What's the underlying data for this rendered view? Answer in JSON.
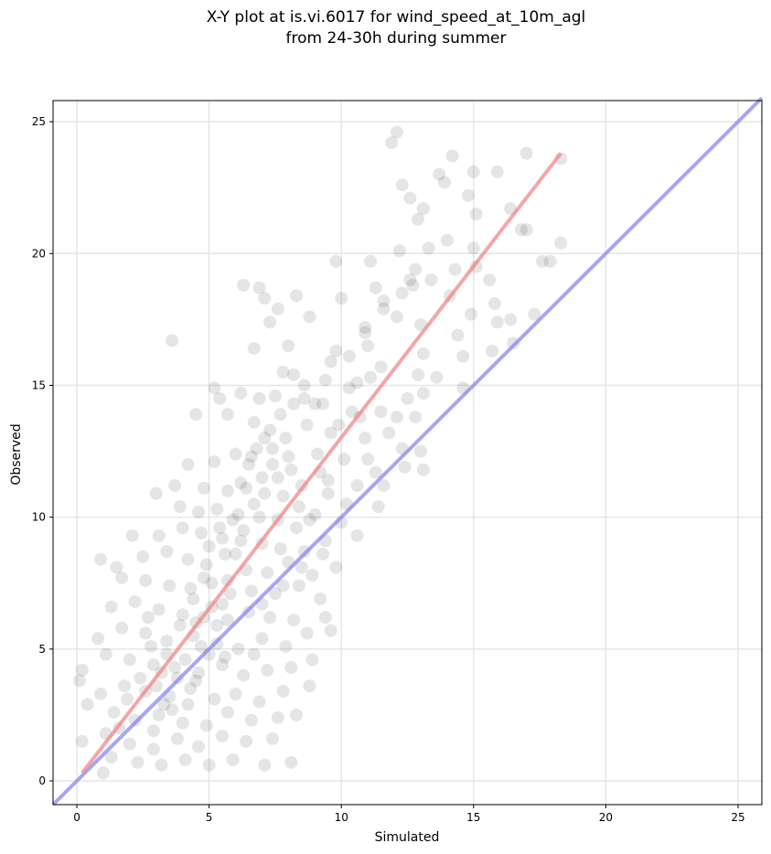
{
  "chart_data": {
    "type": "scatter",
    "title_lines": [
      "X-Y plot at is.vi.6017 for wind_speed_at_10m_agl",
      "from 24-30h during summer"
    ],
    "xlabel": "Simulated",
    "ylabel": "Observed",
    "xlim": [
      -0.9,
      25.9
    ],
    "ylim": [
      -0.9,
      25.8
    ],
    "xticks": [
      0,
      5,
      10,
      15,
      20,
      25
    ],
    "yticks": [
      0,
      5,
      10,
      15,
      20,
      25
    ],
    "grid": true,
    "point_color": "#000000",
    "point_alpha": 0.1,
    "points": [
      [
        18.3,
        23.6
      ],
      [
        12.1,
        24.6
      ],
      [
        11.9,
        24.2
      ],
      [
        17.0,
        23.8
      ],
      [
        14.2,
        23.7
      ],
      [
        13.7,
        23.0
      ],
      [
        15.0,
        23.1
      ],
      [
        15.9,
        23.1
      ],
      [
        13.9,
        22.7
      ],
      [
        12.3,
        22.6
      ],
      [
        12.6,
        22.1
      ],
      [
        14.8,
        22.2
      ],
      [
        12.9,
        21.3
      ],
      [
        13.1,
        21.7
      ],
      [
        15.1,
        21.5
      ],
      [
        16.4,
        21.7
      ],
      [
        16.8,
        20.9
      ],
      [
        17.0,
        20.9
      ],
      [
        18.3,
        20.4
      ],
      [
        12.2,
        20.1
      ],
      [
        13.3,
        20.2
      ],
      [
        14.0,
        20.5
      ],
      [
        15.0,
        20.2
      ],
      [
        11.1,
        19.7
      ],
      [
        9.8,
        19.7
      ],
      [
        12.8,
        19.4
      ],
      [
        14.3,
        19.4
      ],
      [
        15.1,
        19.5
      ],
      [
        17.6,
        19.7
      ],
      [
        17.9,
        19.7
      ],
      [
        11.3,
        18.7
      ],
      [
        12.6,
        19.0
      ],
      [
        13.4,
        19.0
      ],
      [
        15.6,
        19.0
      ],
      [
        6.3,
        18.8
      ],
      [
        6.9,
        18.7
      ],
      [
        8.3,
        18.4
      ],
      [
        10.0,
        18.3
      ],
      [
        11.6,
        18.2
      ],
      [
        14.1,
        18.4
      ],
      [
        15.8,
        18.1
      ],
      [
        7.1,
        18.3
      ],
      [
        7.6,
        17.9
      ],
      [
        8.8,
        17.6
      ],
      [
        10.9,
        17.2
      ],
      [
        12.1,
        17.6
      ],
      [
        13.0,
        17.3
      ],
      [
        14.9,
        17.7
      ],
      [
        17.3,
        17.7
      ],
      [
        15.9,
        17.4
      ],
      [
        6.7,
        16.4
      ],
      [
        7.3,
        17.4
      ],
      [
        8.0,
        16.5
      ],
      [
        9.8,
        16.3
      ],
      [
        11.0,
        16.5
      ],
      [
        13.1,
        16.2
      ],
      [
        14.6,
        16.1
      ],
      [
        16.5,
        16.6
      ],
      [
        3.6,
        16.7
      ],
      [
        7.8,
        15.5
      ],
      [
        8.2,
        15.4
      ],
      [
        9.4,
        15.2
      ],
      [
        10.6,
        15.1
      ],
      [
        11.5,
        15.7
      ],
      [
        12.9,
        15.4
      ],
      [
        5.2,
        14.9
      ],
      [
        6.2,
        14.7
      ],
      [
        6.9,
        14.5
      ],
      [
        7.5,
        14.6
      ],
      [
        8.6,
        14.5
      ],
      [
        9.3,
        14.3
      ],
      [
        10.4,
        14.0
      ],
      [
        12.1,
        13.8
      ],
      [
        13.1,
        14.7
      ],
      [
        5.4,
        14.5
      ],
      [
        4.5,
        13.9
      ],
      [
        5.7,
        13.9
      ],
      [
        6.7,
        13.6
      ],
      [
        7.3,
        13.3
      ],
      [
        7.9,
        13.0
      ],
      [
        8.7,
        13.5
      ],
      [
        9.6,
        13.2
      ],
      [
        10.9,
        13.0
      ],
      [
        12.3,
        12.6
      ],
      [
        13.0,
        12.5
      ],
      [
        4.2,
        12.0
      ],
      [
        5.2,
        12.1
      ],
      [
        6.0,
        12.4
      ],
      [
        6.6,
        12.3
      ],
      [
        7.4,
        12.0
      ],
      [
        8.1,
        11.8
      ],
      [
        9.2,
        11.7
      ],
      [
        10.1,
        12.2
      ],
      [
        11.0,
        12.2
      ],
      [
        12.4,
        11.9
      ],
      [
        13.1,
        11.8
      ],
      [
        3.7,
        11.2
      ],
      [
        4.8,
        11.1
      ],
      [
        5.7,
        11.0
      ],
      [
        6.4,
        11.1
      ],
      [
        7.1,
        10.9
      ],
      [
        7.8,
        10.8
      ],
      [
        8.5,
        11.2
      ],
      [
        9.5,
        10.9
      ],
      [
        10.6,
        11.2
      ],
      [
        11.6,
        11.2
      ],
      [
        3.0,
        10.9
      ],
      [
        3.9,
        10.4
      ],
      [
        4.6,
        10.2
      ],
      [
        5.3,
        10.3
      ],
      [
        6.1,
        10.1
      ],
      [
        6.9,
        10.0
      ],
      [
        7.6,
        9.9
      ],
      [
        8.3,
        9.6
      ],
      [
        9.0,
        10.1
      ],
      [
        10.0,
        9.8
      ],
      [
        11.4,
        10.4
      ],
      [
        2.1,
        9.3
      ],
      [
        3.1,
        9.3
      ],
      [
        4.0,
        9.6
      ],
      [
        4.7,
        9.4
      ],
      [
        5.5,
        9.2
      ],
      [
        6.2,
        9.1
      ],
      [
        7.0,
        9.0
      ],
      [
        7.7,
        8.8
      ],
      [
        8.6,
        8.7
      ],
      [
        9.4,
        9.1
      ],
      [
        10.6,
        9.3
      ],
      [
        1.5,
        8.1
      ],
      [
        2.5,
        8.5
      ],
      [
        3.4,
        8.7
      ],
      [
        4.2,
        8.4
      ],
      [
        4.9,
        8.2
      ],
      [
        5.6,
        8.6
      ],
      [
        6.4,
        8.0
      ],
      [
        7.2,
        7.9
      ],
      [
        8.0,
        8.3
      ],
      [
        8.9,
        7.8
      ],
      [
        9.8,
        8.1
      ],
      [
        0.9,
        8.4
      ],
      [
        1.7,
        7.7
      ],
      [
        2.6,
        7.6
      ],
      [
        3.5,
        7.4
      ],
      [
        4.3,
        7.3
      ],
      [
        5.1,
        7.5
      ],
      [
        5.8,
        7.1
      ],
      [
        6.6,
        7.2
      ],
      [
        7.5,
        7.1
      ],
      [
        8.4,
        7.4
      ],
      [
        9.2,
        6.9
      ],
      [
        1.3,
        6.6
      ],
      [
        2.2,
        6.8
      ],
      [
        3.1,
        6.5
      ],
      [
        4.0,
        6.3
      ],
      [
        4.8,
        6.2
      ],
      [
        5.7,
        6.1
      ],
      [
        6.5,
        6.4
      ],
      [
        7.3,
        6.2
      ],
      [
        8.2,
        6.1
      ],
      [
        9.4,
        6.2
      ],
      [
        0.8,
        5.4
      ],
      [
        1.7,
        5.8
      ],
      [
        2.6,
        5.6
      ],
      [
        3.4,
        5.3
      ],
      [
        4.4,
        5.5
      ],
      [
        5.3,
        5.2
      ],
      [
        6.1,
        5.0
      ],
      [
        7.0,
        5.4
      ],
      [
        7.9,
        5.1
      ],
      [
        8.7,
        5.6
      ],
      [
        9.6,
        5.7
      ],
      [
        0.2,
        4.2
      ],
      [
        1.1,
        4.8
      ],
      [
        2.0,
        4.6
      ],
      [
        2.9,
        4.4
      ],
      [
        3.7,
        4.3
      ],
      [
        4.6,
        4.1
      ],
      [
        5.5,
        4.4
      ],
      [
        6.3,
        4.0
      ],
      [
        7.2,
        4.2
      ],
      [
        8.1,
        4.3
      ],
      [
        8.9,
        4.6
      ],
      [
        0.1,
        3.8
      ],
      [
        0.9,
        3.3
      ],
      [
        1.8,
        3.6
      ],
      [
        2.6,
        3.4
      ],
      [
        3.5,
        3.2
      ],
      [
        4.3,
        3.5
      ],
      [
        5.2,
        3.1
      ],
      [
        6.0,
        3.3
      ],
      [
        6.9,
        3.0
      ],
      [
        7.8,
        3.4
      ],
      [
        8.8,
        3.6
      ],
      [
        0.4,
        2.9
      ],
      [
        1.4,
        2.6
      ],
      [
        2.2,
        2.3
      ],
      [
        3.1,
        2.5
      ],
      [
        4.0,
        2.2
      ],
      [
        4.9,
        2.1
      ],
      [
        5.7,
        2.6
      ],
      [
        6.6,
        2.3
      ],
      [
        7.6,
        2.4
      ],
      [
        8.3,
        2.5
      ],
      [
        0.2,
        1.5
      ],
      [
        1.1,
        1.8
      ],
      [
        2.0,
        1.4
      ],
      [
        2.9,
        1.2
      ],
      [
        3.8,
        1.6
      ],
      [
        4.6,
        1.3
      ],
      [
        5.5,
        1.7
      ],
      [
        6.4,
        1.5
      ],
      [
        7.4,
        1.6
      ],
      [
        1.3,
        0.9
      ],
      [
        2.3,
        0.7
      ],
      [
        3.2,
        0.6
      ],
      [
        4.1,
        0.8
      ],
      [
        5.0,
        0.6
      ],
      [
        5.9,
        0.8
      ],
      [
        7.1,
        0.6
      ],
      [
        8.1,
        0.7
      ],
      [
        1.0,
        0.3
      ],
      [
        3.3,
        2.9
      ],
      [
        3.4,
        4.8
      ],
      [
        3.8,
        3.9
      ],
      [
        4.4,
        6.9
      ],
      [
        4.8,
        7.7
      ],
      [
        5.0,
        8.9
      ],
      [
        5.4,
        9.6
      ],
      [
        5.7,
        7.6
      ],
      [
        6.0,
        8.6
      ],
      [
        6.3,
        9.5
      ],
      [
        6.7,
        10.5
      ],
      [
        7.0,
        11.5
      ],
      [
        7.4,
        12.6
      ],
      [
        7.7,
        13.9
      ],
      [
        8.2,
        14.3
      ],
      [
        8.6,
        15.0
      ],
      [
        9.0,
        14.3
      ],
      [
        9.6,
        15.9
      ],
      [
        10.3,
        16.1
      ],
      [
        10.9,
        17.0
      ],
      [
        11.6,
        17.9
      ],
      [
        12.3,
        18.5
      ],
      [
        12.7,
        18.8
      ],
      [
        3.9,
        5.9
      ],
      [
        4.1,
        4.6
      ],
      [
        4.5,
        6.0
      ],
      [
        2.4,
        3.9
      ],
      [
        2.8,
        5.1
      ],
      [
        3.0,
        3.6
      ],
      [
        3.2,
        4.1
      ],
      [
        4.7,
        5.1
      ],
      [
        5.1,
        6.6
      ],
      [
        5.5,
        6.7
      ],
      [
        5.9,
        9.9
      ],
      [
        6.2,
        11.3
      ],
      [
        6.5,
        12.0
      ],
      [
        6.8,
        12.6
      ],
      [
        7.1,
        13.0
      ],
      [
        7.6,
        11.5
      ],
      [
        8.0,
        12.3
      ],
      [
        8.4,
        10.4
      ],
      [
        8.8,
        9.9
      ],
      [
        9.1,
        12.4
      ],
      [
        9.5,
        11.4
      ],
      [
        9.9,
        13.5
      ],
      [
        10.3,
        14.9
      ],
      [
        10.7,
        13.8
      ],
      [
        11.1,
        15.3
      ],
      [
        11.5,
        14.0
      ],
      [
        11.8,
        13.2
      ],
      [
        12.5,
        14.5
      ],
      [
        13.6,
        15.3
      ],
      [
        14.4,
        16.9
      ],
      [
        2.7,
        6.2
      ],
      [
        1.9,
        3.1
      ],
      [
        1.6,
        2.0
      ],
      [
        2.9,
        1.9
      ],
      [
        3.6,
        2.7
      ],
      [
        4.2,
        2.9
      ],
      [
        4.5,
        3.8
      ],
      [
        5.0,
        4.8
      ],
      [
        5.3,
        5.9
      ],
      [
        5.6,
        4.7
      ],
      [
        6.7,
        4.8
      ],
      [
        7.0,
        6.7
      ],
      [
        7.8,
        7.4
      ],
      [
        8.5,
        8.1
      ],
      [
        9.3,
        8.6
      ],
      [
        10.2,
        10.5
      ],
      [
        11.3,
        11.7
      ],
      [
        12.8,
        13.8
      ],
      [
        14.6,
        14.9
      ],
      [
        15.7,
        16.3
      ],
      [
        16.4,
        17.5
      ]
    ],
    "fit_line": {
      "color": "#f08080",
      "x": [
        0.2,
        18.3
      ],
      "y": [
        0.3,
        23.8
      ]
    },
    "identity_line": {
      "color": "#8080f0",
      "x": [
        -0.9,
        25.9
      ],
      "y": [
        -0.9,
        25.9
      ]
    }
  }
}
